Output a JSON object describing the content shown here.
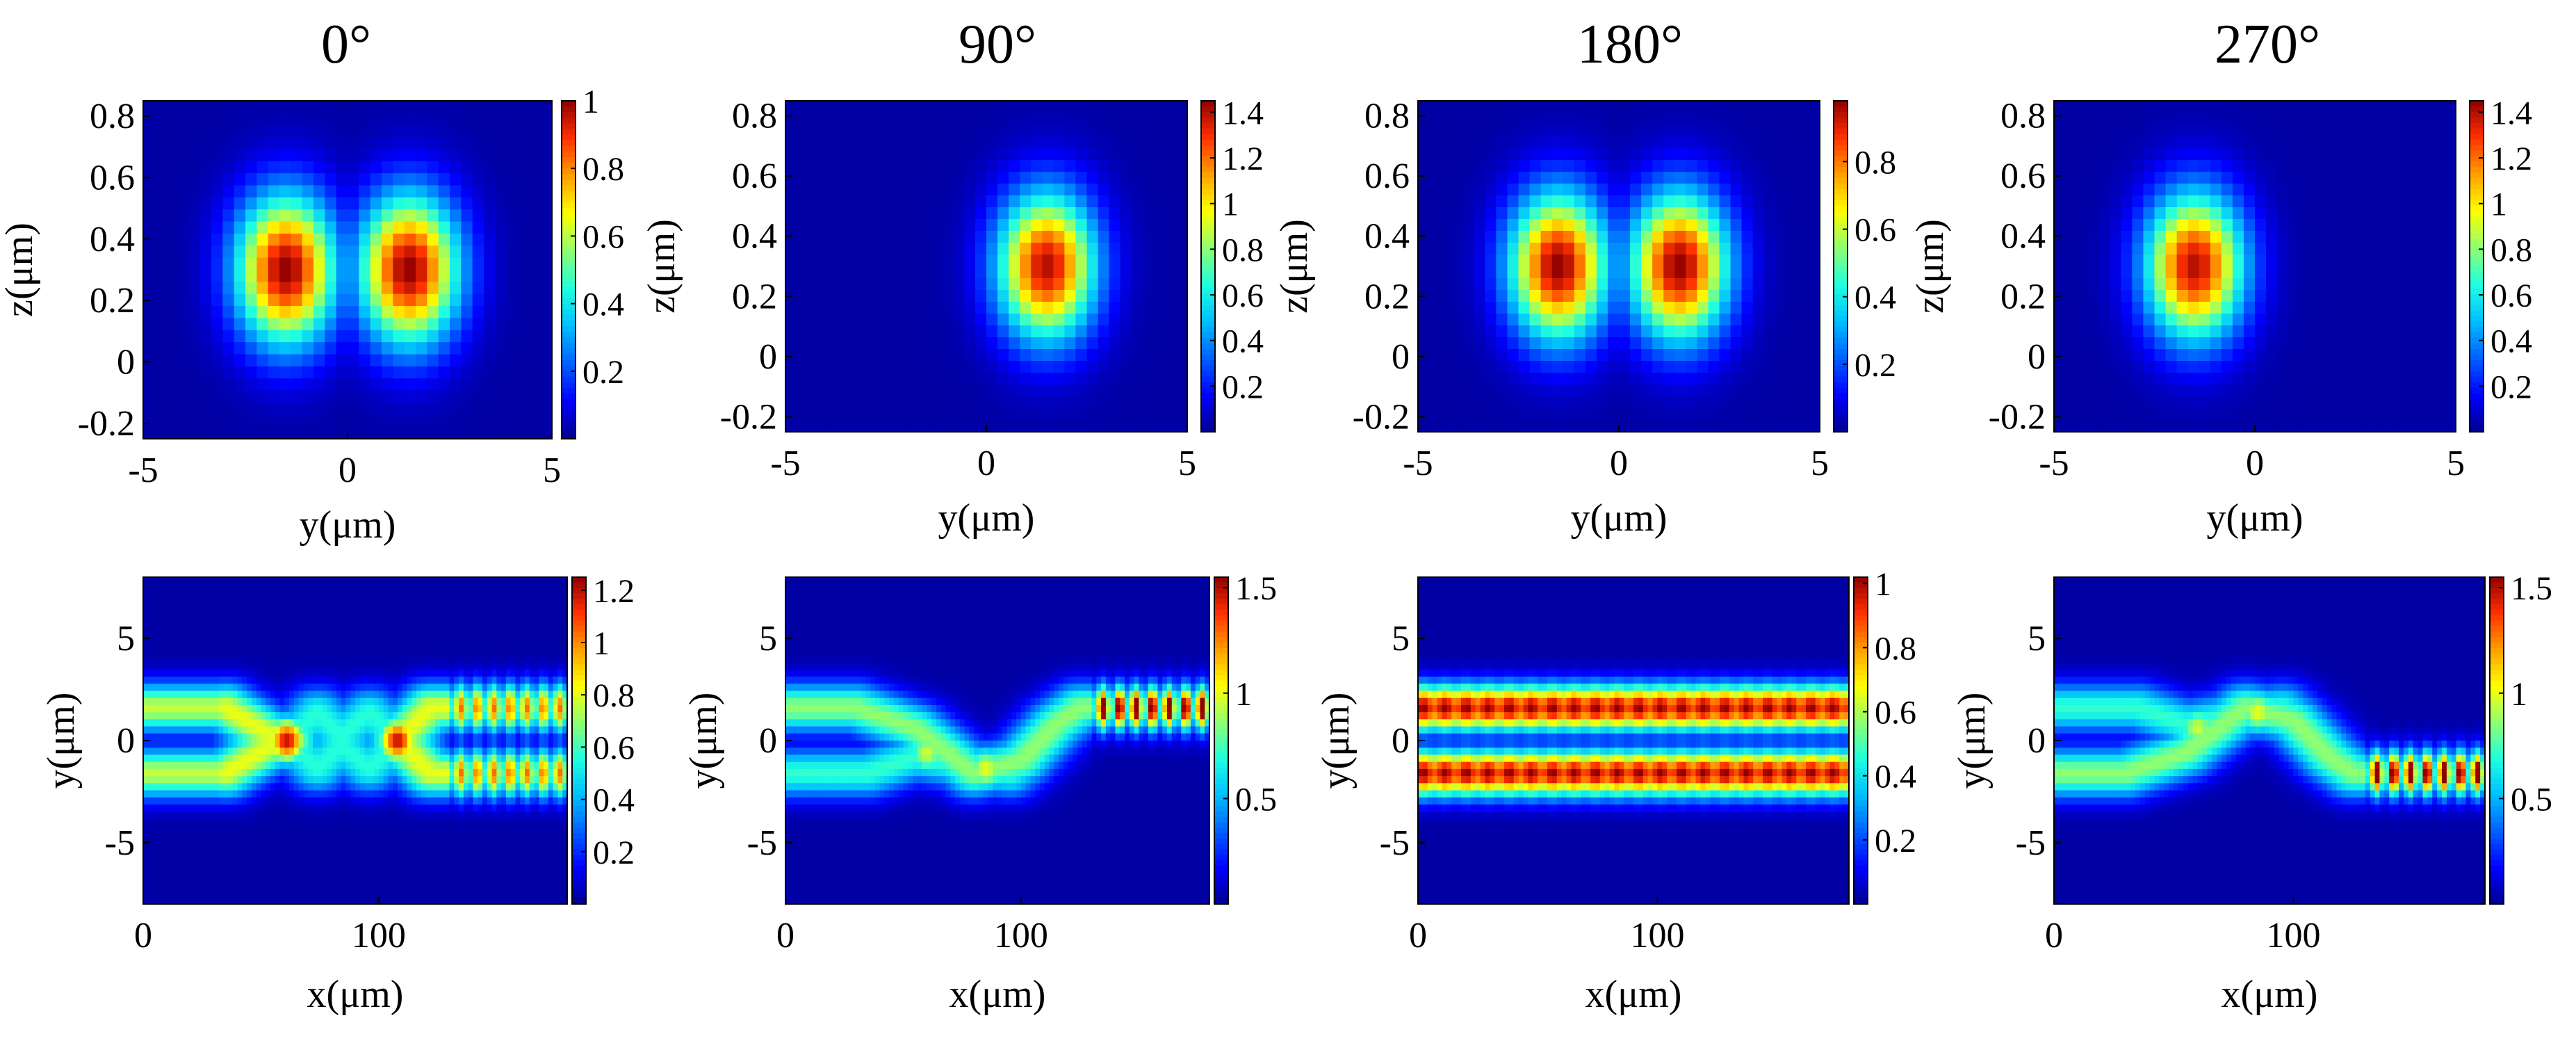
{
  "figure": {
    "column_titles": [
      "0°",
      "90°",
      "180°",
      "270°"
    ]
  },
  "colormap": [
    "#00008f",
    "#0000ff",
    "#0060ff",
    "#00bfff",
    "#20ffdf",
    "#8fff70",
    "#ffff00",
    "#ff9f00",
    "#ff3000",
    "#8f0000"
  ],
  "background_value_color": "#00008f",
  "chart_data": [
    {
      "type": "heatmap",
      "panel": "top-0",
      "title": "0°",
      "xlabel": "y(μm)",
      "ylabel": "z(μm)",
      "xlim": [
        -5,
        5
      ],
      "ylim": [
        -0.25,
        0.85
      ],
      "xticks": [
        "-5",
        "0",
        "5"
      ],
      "xtick_values": [
        -5,
        0,
        5
      ],
      "yticks": [
        "-0.2",
        "0",
        "0.2",
        "0.4",
        "0.6",
        "0.8"
      ],
      "ytick_values": [
        -0.2,
        0,
        0.2,
        0.4,
        0.6,
        0.8
      ],
      "colorbar": {
        "ticks": [
          "0.2",
          "0.4",
          "0.6",
          "0.8",
          "1"
        ],
        "values": [
          0.2,
          0.4,
          0.6,
          0.8,
          1.0
        ],
        "range": [
          0,
          1.0
        ]
      },
      "field": {
        "kind": "spots",
        "spots": [
          {
            "y": -1.5,
            "z": 0.3,
            "peak": 1.0
          },
          {
            "y": 1.5,
            "z": 0.3,
            "peak": 1.0
          }
        ],
        "sigma_y": 0.85,
        "sigma_z": 0.17
      }
    },
    {
      "type": "heatmap",
      "panel": "top-90",
      "title": "90°",
      "xlabel": "y(μm)",
      "ylabel": "z(μm)",
      "xlim": [
        -5,
        5
      ],
      "ylim": [
        -0.25,
        0.85
      ],
      "xticks": [
        "-5",
        "0",
        "5"
      ],
      "xtick_values": [
        -5,
        0,
        5
      ],
      "yticks": [
        "-0.2",
        "0",
        "0.2",
        "0.4",
        "0.6",
        "0.8"
      ],
      "ytick_values": [
        -0.2,
        0,
        0.2,
        0.4,
        0.6,
        0.8
      ],
      "colorbar": {
        "ticks": [
          "0.2",
          "0.4",
          "0.6",
          "0.8",
          "1",
          "1.2",
          "1.4"
        ],
        "values": [
          0.2,
          0.4,
          0.6,
          0.8,
          1.0,
          1.2,
          1.4
        ],
        "range": [
          0,
          1.45
        ]
      },
      "field": {
        "kind": "spots",
        "spots": [
          {
            "y": 1.5,
            "z": 0.3,
            "peak": 1.4
          }
        ],
        "sigma_y": 0.85,
        "sigma_z": 0.17
      }
    },
    {
      "type": "heatmap",
      "panel": "top-180",
      "title": "180°",
      "xlabel": "y(μm)",
      "ylabel": "z(μm)",
      "xlim": [
        -5,
        5
      ],
      "ylim": [
        -0.25,
        0.85
      ],
      "xticks": [
        "-5",
        "0",
        "5"
      ],
      "xtick_values": [
        -5,
        0,
        5
      ],
      "yticks": [
        "-0.2",
        "0",
        "0.2",
        "0.4",
        "0.6",
        "0.8"
      ],
      "ytick_values": [
        -0.2,
        0,
        0.2,
        0.4,
        0.6,
        0.8
      ],
      "colorbar": {
        "ticks": [
          "0.2",
          "0.4",
          "0.6",
          "0.8"
        ],
        "values": [
          0.2,
          0.4,
          0.6,
          0.8
        ],
        "range": [
          0,
          0.98
        ]
      },
      "field": {
        "kind": "spots",
        "spots": [
          {
            "y": -1.5,
            "z": 0.3,
            "peak": 0.98
          },
          {
            "y": 1.5,
            "z": 0.3,
            "peak": 0.98
          }
        ],
        "sigma_y": 0.85,
        "sigma_z": 0.17
      }
    },
    {
      "type": "heatmap",
      "panel": "top-270",
      "title": "270°",
      "xlabel": "y(μm)",
      "ylabel": "z(μm)",
      "xlim": [
        -5,
        5
      ],
      "ylim": [
        -0.25,
        0.85
      ],
      "xticks": [
        "-5",
        "0",
        "5"
      ],
      "xtick_values": [
        -5,
        0,
        5
      ],
      "yticks": [
        "-0.2",
        "0",
        "0.2",
        "0.4",
        "0.6",
        "0.8"
      ],
      "ytick_values": [
        -0.2,
        0,
        0.2,
        0.4,
        0.6,
        0.8
      ],
      "colorbar": {
        "ticks": [
          "0.2",
          "0.4",
          "0.6",
          "0.8",
          "1",
          "1.2",
          "1.4"
        ],
        "values": [
          0.2,
          0.4,
          0.6,
          0.8,
          1.0,
          1.2,
          1.4
        ],
        "range": [
          0,
          1.45
        ]
      },
      "field": {
        "kind": "spots",
        "spots": [
          {
            "y": -1.5,
            "z": 0.3,
            "peak": 1.4
          }
        ],
        "sigma_y": 0.85,
        "sigma_z": 0.17
      }
    },
    {
      "type": "heatmap",
      "panel": "bottom-0",
      "xlabel": "x(μm)",
      "ylabel": "y(μm)",
      "xlim": [
        0,
        180
      ],
      "ylim": [
        -8,
        8
      ],
      "xticks": [
        "0",
        "100"
      ],
      "xtick_values": [
        0,
        100
      ],
      "yticks": [
        "-5",
        "0",
        "5"
      ],
      "ytick_values": [
        -5,
        0,
        5
      ],
      "colorbar": {
        "ticks": [
          "0.2",
          "0.4",
          "0.6",
          "0.8",
          "1",
          "1.2"
        ],
        "values": [
          0.2,
          0.4,
          0.6,
          0.8,
          1.0,
          1.2
        ],
        "range": [
          0,
          1.25
        ]
      },
      "field": {
        "kind": "path",
        "sigma": 0.85,
        "paths": [
          {
            "points": [
              [
                0,
                1.6
              ],
              [
                20,
                1.6
              ],
              [
                35,
                1.6
              ]
            ],
            "peak": 0.75
          },
          {
            "points": [
              [
                0,
                -1.6
              ],
              [
                20,
                -1.6
              ],
              [
                35,
                -1.6
              ]
            ],
            "peak": 0.75
          },
          {
            "points": [
              [
                35,
                1.6
              ],
              [
                52,
                0.4
              ],
              [
                62,
                0
              ]
            ],
            "peak": 0.8
          },
          {
            "points": [
              [
                35,
                -1.6
              ],
              [
                52,
                -0.4
              ],
              [
                62,
                0
              ]
            ],
            "peak": 0.8
          },
          {
            "points": [
              [
                62,
                0
              ],
              [
                74,
                1.4
              ],
              [
                84,
                0.2
              ]
            ],
            "peak": 0.55
          },
          {
            "points": [
              [
                62,
                0
              ],
              [
                74,
                -1.4
              ],
              [
                84,
                -0.2
              ]
            ],
            "peak": 0.55
          },
          {
            "points": [
              [
                84,
                0.2
              ],
              [
                96,
                1.4
              ],
              [
                108,
                0
              ]
            ],
            "peak": 0.55
          },
          {
            "points": [
              [
                84,
                -0.2
              ],
              [
                96,
                -1.4
              ],
              [
                108,
                0
              ]
            ],
            "peak": 0.55
          },
          {
            "points": [
              [
                108,
                0
              ],
              [
                122,
                1.6
              ],
              [
                180,
                1.6
              ]
            ],
            "peak": 0.8
          },
          {
            "points": [
              [
                108,
                0
              ],
              [
                122,
                -1.6
              ],
              [
                180,
                -1.6
              ]
            ],
            "peak": 0.8
          }
        ],
        "hotspots": [
          {
            "x": 61,
            "y": 0,
            "peak": 1.2
          },
          {
            "x": 108,
            "y": 0,
            "peak": 1.2
          }
        ],
        "ripple": {
          "x_start": 130,
          "amplitude": 0.3,
          "period": 7
        }
      }
    },
    {
      "type": "heatmap",
      "panel": "bottom-90",
      "xlabel": "x(μm)",
      "ylabel": "y(μm)",
      "xlim": [
        0,
        180
      ],
      "ylim": [
        -8,
        8
      ],
      "xticks": [
        "0",
        "100"
      ],
      "xtick_values": [
        0,
        100
      ],
      "yticks": [
        "-5",
        "0",
        "5"
      ],
      "ytick_values": [
        -5,
        0,
        5
      ],
      "colorbar": {
        "ticks": [
          "0.5",
          "1",
          "1.5"
        ],
        "values": [
          0.5,
          1.0,
          1.5
        ],
        "range": [
          0,
          1.55
        ]
      },
      "field": {
        "kind": "path",
        "sigma": 0.85,
        "paths": [
          {
            "points": [
              [
                0,
                1.6
              ],
              [
                30,
                1.6
              ],
              [
                55,
                0.6
              ],
              [
                80,
                -1.6
              ],
              [
                100,
                -1.0
              ],
              [
                115,
                0.8
              ],
              [
                125,
                1.6
              ],
              [
                180,
                1.6
              ]
            ],
            "peak": 0.85
          },
          {
            "points": [
              [
                0,
                -1.6
              ],
              [
                35,
                -1.6
              ],
              [
                55,
                -0.8
              ],
              [
                75,
                -1.2
              ],
              [
                95,
                -1.6
              ],
              [
                105,
                -0.6
              ],
              [
                115,
                0.6
              ],
              [
                125,
                1.6
              ]
            ],
            "peak": 0.7
          }
        ],
        "hotspots": [
          {
            "x": 60,
            "y": -0.6,
            "peak": 0.95
          },
          {
            "x": 85,
            "y": -1.4,
            "peak": 1.0
          }
        ],
        "ripple": {
          "x_start": 130,
          "amplitude": 0.3,
          "period": 7,
          "target_y": 1.6,
          "boost": 0.6
        }
      }
    },
    {
      "type": "heatmap",
      "panel": "bottom-180",
      "xlabel": "x(μm)",
      "ylabel": "y(μm)",
      "xlim": [
        0,
        180
      ],
      "ylim": [
        -8,
        8
      ],
      "xticks": [
        "0",
        "100"
      ],
      "xtick_values": [
        0,
        100
      ],
      "yticks": [
        "-5",
        "0",
        "5"
      ],
      "ytick_values": [
        -5,
        0,
        5
      ],
      "colorbar": {
        "ticks": [
          "0.2",
          "0.4",
          "0.6",
          "0.8",
          "1"
        ],
        "values": [
          0.2,
          0.4,
          0.6,
          0.8,
          1.0
        ],
        "range": [
          0,
          1.02
        ]
      },
      "field": {
        "kind": "path",
        "sigma": 0.8,
        "paths": [
          {
            "points": [
              [
                0,
                1.6
              ],
              [
                180,
                1.6
              ]
            ],
            "peak": 0.95
          },
          {
            "points": [
              [
                0,
                -1.6
              ],
              [
                180,
                -1.6
              ]
            ],
            "peak": 0.95
          }
        ],
        "hotspots": [],
        "ripple": {
          "x_start": 0,
          "amplitude": 0.08,
          "period": 9
        }
      }
    },
    {
      "type": "heatmap",
      "panel": "bottom-270",
      "xlabel": "x(μm)",
      "ylabel": "y(μm)",
      "xlim": [
        0,
        180
      ],
      "ylim": [
        -8,
        8
      ],
      "xticks": [
        "0",
        "100"
      ],
      "xtick_values": [
        0,
        100
      ],
      "yticks": [
        "-5",
        "0",
        "5"
      ],
      "ytick_values": [
        -5,
        0,
        5
      ],
      "colorbar": {
        "ticks": [
          "0.5",
          "1",
          "1.5"
        ],
        "values": [
          0.5,
          1.0,
          1.5
        ],
        "range": [
          0,
          1.55
        ]
      },
      "field": {
        "kind": "path",
        "sigma": 0.85,
        "paths": [
          {
            "points": [
              [
                0,
                -1.6
              ],
              [
                30,
                -1.6
              ],
              [
                55,
                -0.6
              ],
              [
                80,
                1.6
              ],
              [
                100,
                1.0
              ],
              [
                115,
                -0.8
              ],
              [
                125,
                -1.6
              ],
              [
                180,
                -1.6
              ]
            ],
            "peak": 0.85
          },
          {
            "points": [
              [
                0,
                1.6
              ],
              [
                35,
                1.6
              ],
              [
                55,
                0.8
              ],
              [
                75,
                1.2
              ],
              [
                95,
                1.6
              ],
              [
                105,
                0.6
              ],
              [
                115,
                -0.6
              ],
              [
                125,
                -1.6
              ]
            ],
            "peak": 0.7
          }
        ],
        "hotspots": [
          {
            "x": 60,
            "y": 0.6,
            "peak": 0.95
          },
          {
            "x": 85,
            "y": 1.4,
            "peak": 1.0
          }
        ],
        "ripple": {
          "x_start": 130,
          "amplitude": 0.3,
          "period": 7,
          "target_y": -1.6,
          "boost": 0.6
        }
      }
    }
  ]
}
